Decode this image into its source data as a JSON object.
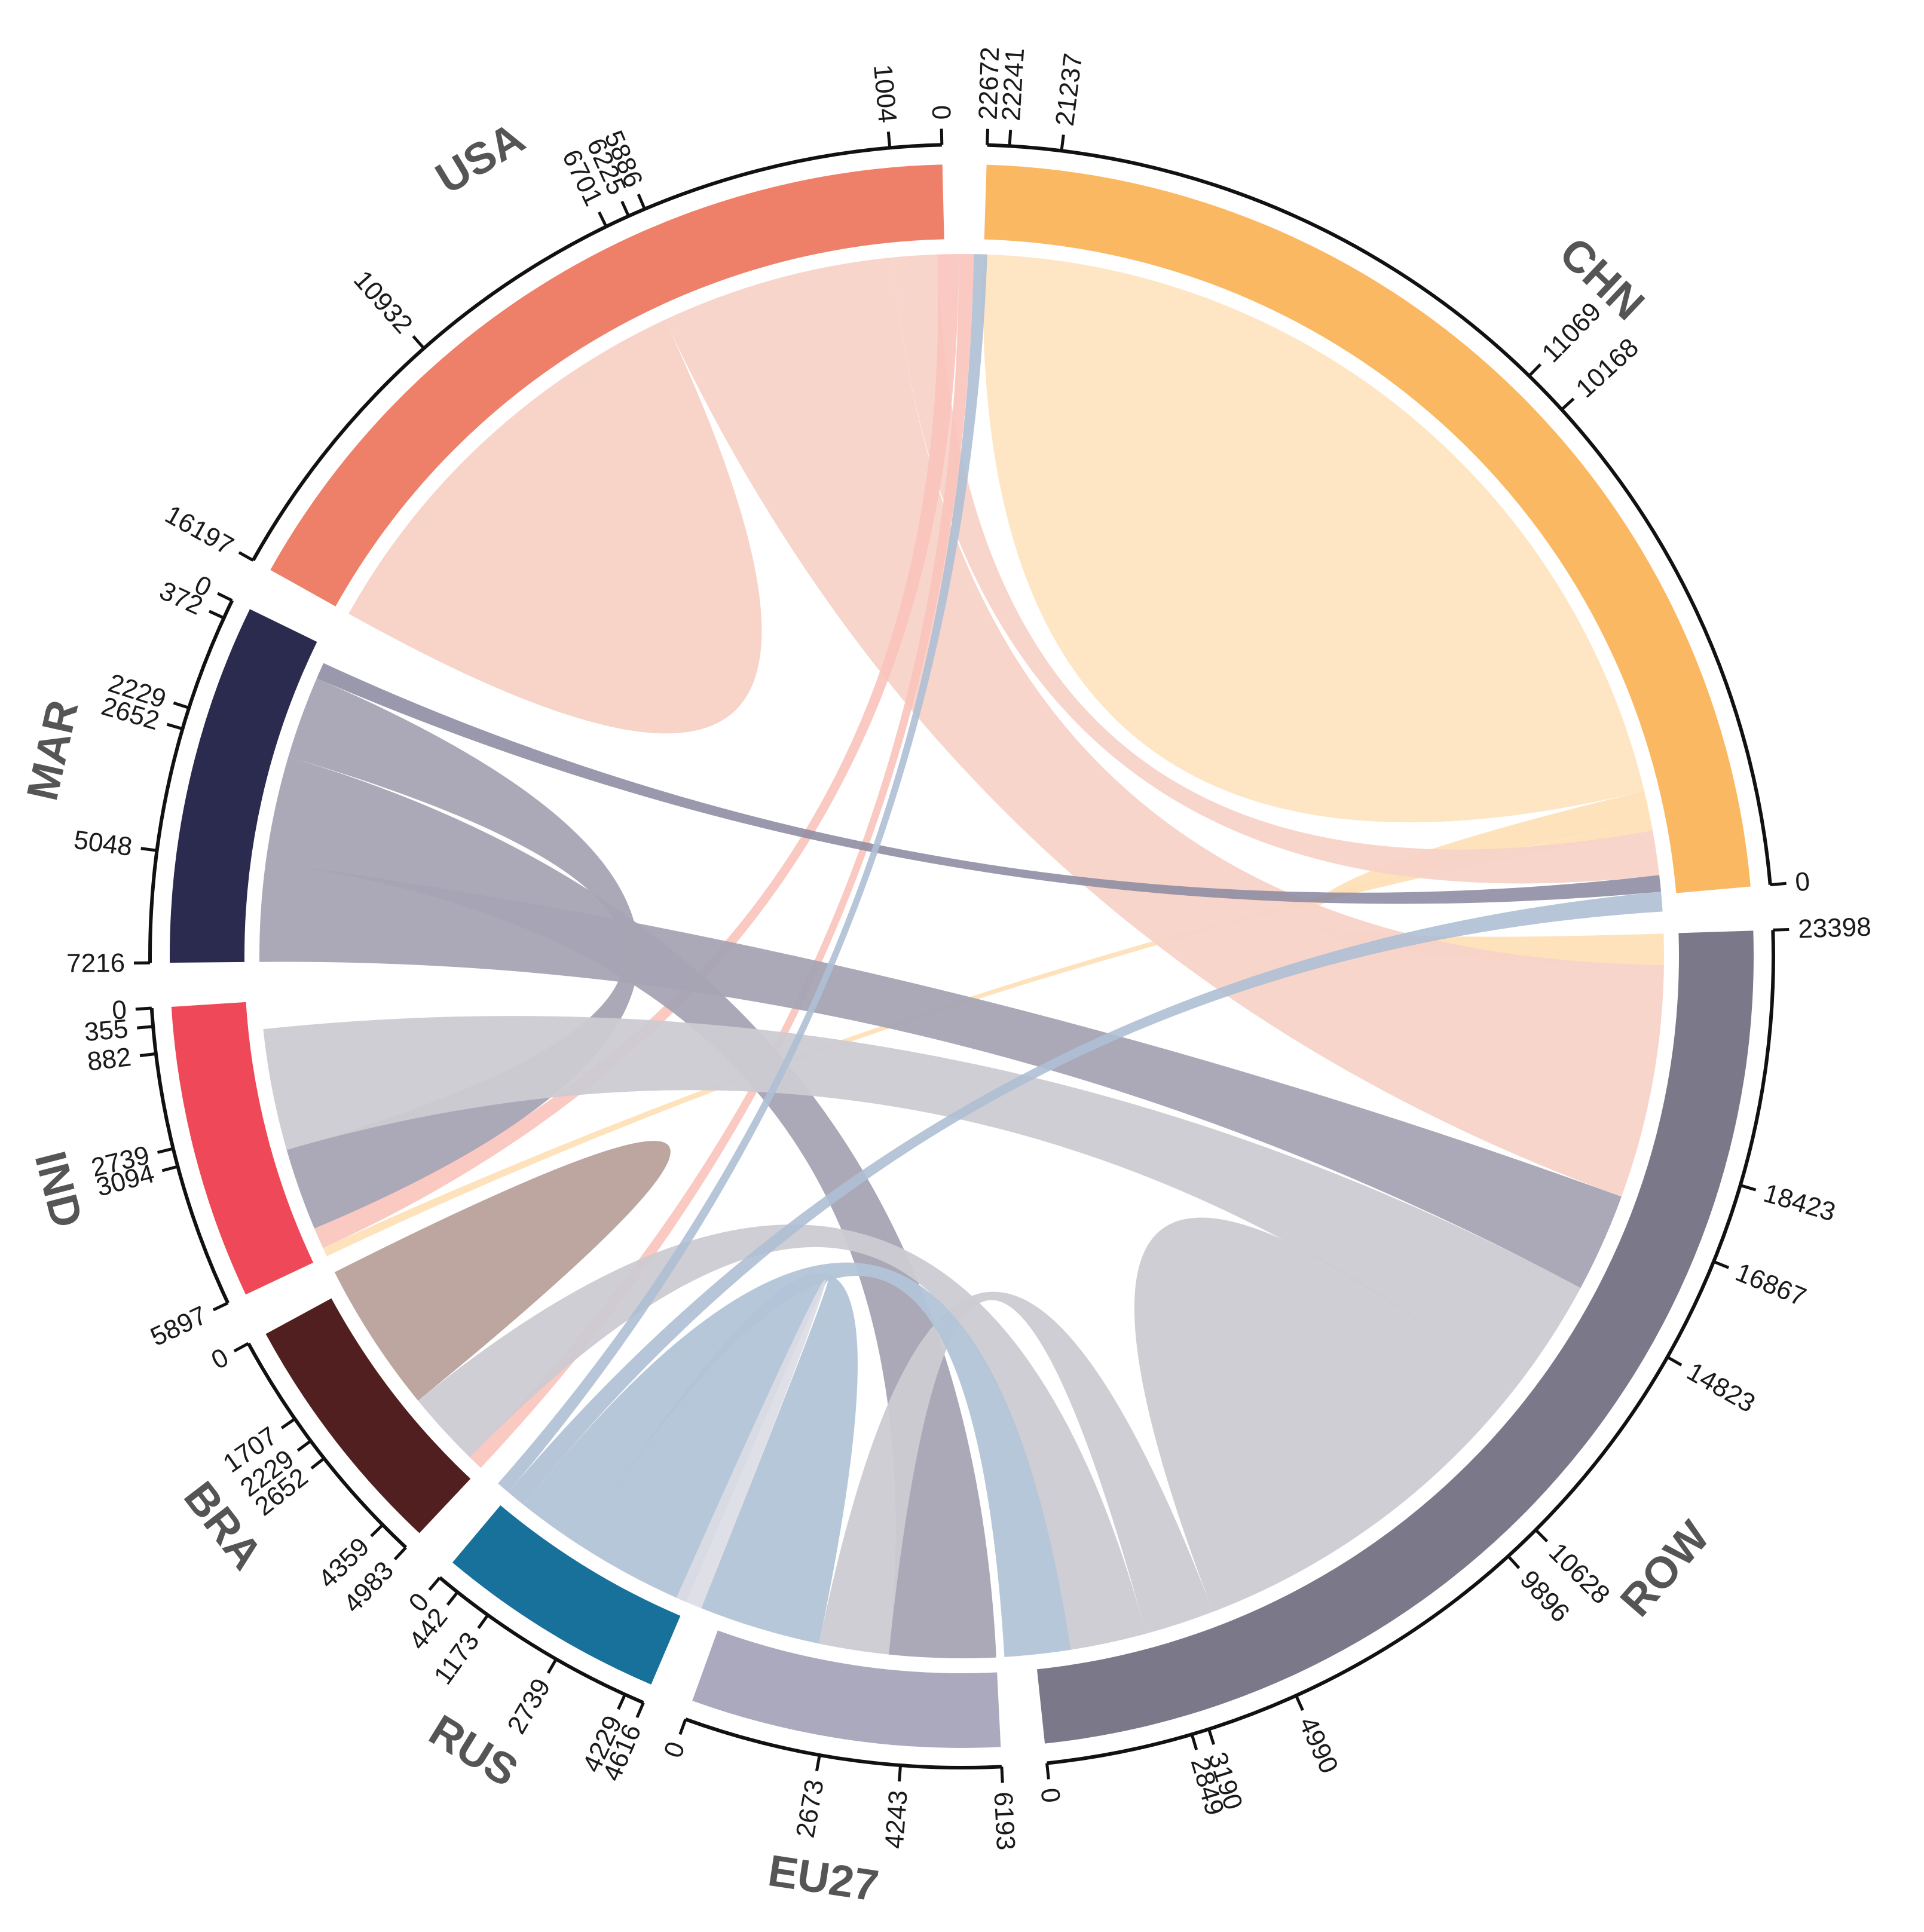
{
  "chart_data": {
    "type": "chord",
    "title": "",
    "sectors": [
      {
        "name": "CHN",
        "color": "#fbb862",
        "total": 22672,
        "ticks": [
          0,
          10168,
          11069,
          21237,
          22241,
          22672
        ]
      },
      {
        "name": "ROW",
        "color": "#7a7889",
        "total": 23398,
        "ticks": [
          0,
          2849,
          3190,
          4990,
          9896,
          10628,
          14823,
          16867,
          18423,
          23398
        ]
      },
      {
        "name": "EU27",
        "color": "#aaa9bd",
        "total": 6193,
        "ticks": [
          0,
          2673,
          4243,
          6193
        ]
      },
      {
        "name": "RUS",
        "color": "#17719b",
        "total": 4616,
        "ticks": [
          0,
          442,
          1173,
          2739,
          4229,
          4616
        ]
      },
      {
        "name": "BRA",
        "color": "#511f1f",
        "total": 4983,
        "ticks": [
          0,
          1707,
          2229,
          2652,
          4359,
          4983
        ]
      },
      {
        "name": "IND",
        "color": "#ef4858",
        "total": 5897,
        "ticks": [
          0,
          355,
          882,
          2739,
          3094,
          5897
        ]
      },
      {
        "name": "MAR",
        "color": "#2a2b4f",
        "total": 7216,
        "ticks": [
          0,
          372,
          2229,
          2652,
          5048,
          7216
        ]
      },
      {
        "name": "USA",
        "color": "#ee8069",
        "total": 16197,
        "ticks": [
          0,
          1004,
          5886,
          6225,
          6701,
          10932,
          16197
        ]
      }
    ],
    "flows": [
      {
        "from": "CHN",
        "to": "CHN",
        "value": 10168,
        "color": "#fee6c5",
        "opacity": 1
      },
      {
        "from": "CHN",
        "to": "ROW",
        "value": 700,
        "color": "#fedfb5",
        "opacity": 0.9
      },
      {
        "from": "CHN",
        "to": "IND",
        "value": 200,
        "color": "#fedfb5",
        "opacity": 0.9
      },
      {
        "from": "USA",
        "to": "USA",
        "value": 4882,
        "color": "#f8d3c8",
        "opacity": 1
      },
      {
        "from": "USA",
        "to": "ROW",
        "value": 5265,
        "color": "#f8d3c8",
        "opacity": 0.95
      },
      {
        "from": "USA",
        "to": "CHN",
        "value": 1004,
        "color": "#f8d3c8",
        "opacity": 0.95
      },
      {
        "from": "USA",
        "to": "IND",
        "value": 476,
        "color": "#f8c3bb",
        "opacity": 0.9
      },
      {
        "from": "USA",
        "to": "BRA",
        "value": 339,
        "color": "#f8c3bb",
        "opacity": 0.9
      },
      {
        "from": "MAR",
        "to": "ROW",
        "value": 2229,
        "color": "#a6a4b4",
        "opacity": 0.95
      },
      {
        "from": "MAR",
        "to": "EU27",
        "value": 2396,
        "color": "#a6a4b4",
        "opacity": 0.95
      },
      {
        "from": "MAR",
        "to": "IND",
        "value": 1857,
        "color": "#a6a4b4",
        "opacity": 0.95
      },
      {
        "from": "MAR",
        "to": "CHN",
        "value": 372,
        "color": "#8f8da3",
        "opacity": 0.9
      },
      {
        "from": "ROW",
        "to": "IND",
        "value": 2739,
        "color": "#cccbd2",
        "opacity": 0.95
      },
      {
        "from": "ROW",
        "to": "ROW",
        "value": 4195,
        "color": "#cccbd2",
        "opacity": 0.95
      },
      {
        "from": "ROW",
        "to": "EU27",
        "value": 1570,
        "color": "#cccbd2",
        "opacity": 0.95
      },
      {
        "from": "ROW",
        "to": "BRA",
        "value": 1707,
        "color": "#cccbd2",
        "opacity": 0.95
      },
      {
        "from": "BRA",
        "to": "BRA",
        "value": 1707,
        "color": "#b8a19a",
        "opacity": 0.95
      },
      {
        "from": "RUS",
        "to": "EU27",
        "value": 2739,
        "color": "#b3c4d8",
        "opacity": 0.95
      },
      {
        "from": "RUS",
        "to": "ROW",
        "value": 1490,
        "color": "#b3c4d8",
        "opacity": 0.95
      },
      {
        "from": "RUS",
        "to": "CHN",
        "value": 442,
        "color": "#aebfd4",
        "opacity": 0.9
      },
      {
        "from": "RUS",
        "to": "USA",
        "value": 300,
        "color": "#aebfd4",
        "opacity": 0.9
      },
      {
        "from": "EU27",
        "to": "EU27",
        "value": 300,
        "color": "#dcdbe4",
        "opacity": 0.9
      }
    ]
  }
}
